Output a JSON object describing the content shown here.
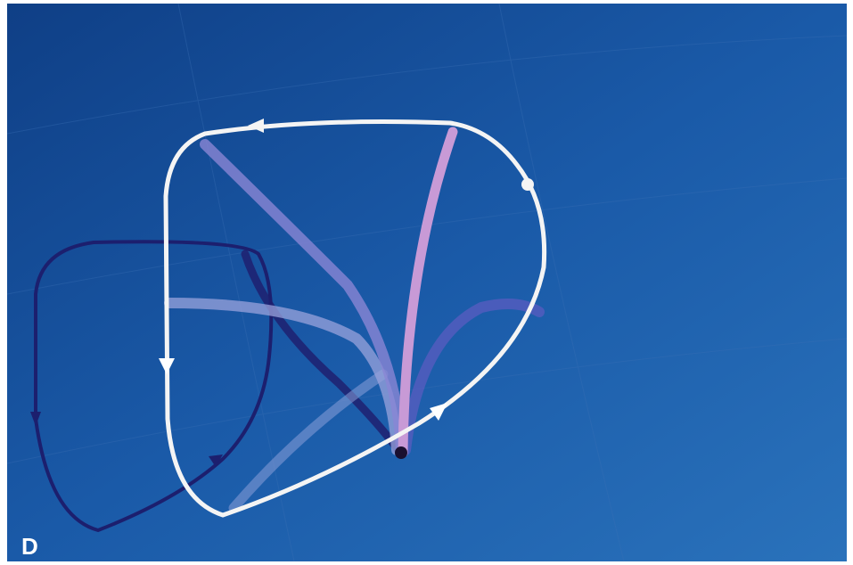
{
  "panel_label": "D"
}
